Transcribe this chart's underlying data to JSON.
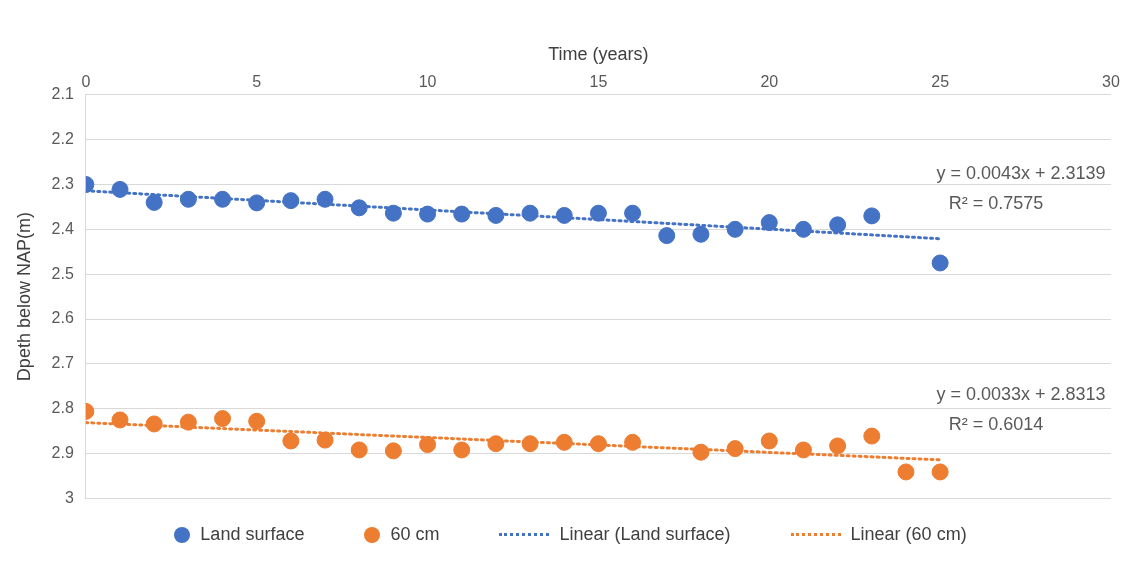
{
  "chart_data": {
    "type": "scatter",
    "xlabel": "Time (years)",
    "ylabel": "Dpeth below NAP(m)",
    "xlim": [
      0,
      30
    ],
    "xticks": [
      0,
      5,
      10,
      15,
      20,
      25,
      30
    ],
    "ylim": [
      3,
      2.1
    ],
    "yticks": [
      2.1,
      2.2,
      2.3,
      2.4,
      2.5,
      2.6,
      2.7,
      2.8,
      2.9,
      3
    ],
    "grid": "y",
    "legend": "bottom",
    "series": [
      {
        "name": "Land surface",
        "type": "scatter",
        "marker": "circle",
        "color": "#4472c4",
        "x": [
          0,
          1,
          2,
          3,
          4,
          5,
          6,
          7,
          8,
          9,
          10,
          11,
          12,
          13,
          14,
          15,
          16,
          17,
          18,
          19,
          20,
          21,
          22,
          23,
          25
        ],
        "values": [
          2.3,
          2.311,
          2.34,
          2.333,
          2.333,
          2.341,
          2.336,
          2.333,
          2.352,
          2.364,
          2.366,
          2.366,
          2.369,
          2.364,
          2.369,
          2.364,
          2.364,
          2.414,
          2.411,
          2.4,
          2.385,
          2.4,
          2.39,
          2.37,
          2.475
        ]
      },
      {
        "name": "60 cm",
        "type": "scatter",
        "marker": "circle",
        "color": "#ed7d31",
        "x": [
          0,
          1,
          2,
          3,
          4,
          5,
          6,
          7,
          8,
          9,
          10,
          11,
          12,
          13,
          14,
          15,
          16,
          18,
          19,
          20,
          21,
          22,
          23,
          24,
          25
        ],
        "values": [
          2.806,
          2.825,
          2.834,
          2.83,
          2.822,
          2.828,
          2.872,
          2.87,
          2.892,
          2.894,
          2.88,
          2.892,
          2.878,
          2.878,
          2.875,
          2.878,
          2.875,
          2.897,
          2.889,
          2.872,
          2.892,
          2.883,
          2.861,
          2.941,
          2.941
        ]
      },
      {
        "name": "Linear (Land surface)",
        "type": "line",
        "marker": "none",
        "line_style": "dotted",
        "color": "#4472c4",
        "x": [
          0,
          25
        ],
        "values": [
          2.314,
          2.421
        ]
      },
      {
        "name": "Linear (60 cm)",
        "type": "line",
        "marker": "none",
        "line_style": "dotted",
        "color": "#ed7d31",
        "x": [
          0,
          25
        ],
        "values": [
          2.831,
          2.914
        ]
      }
    ],
    "annotations": [
      "y = 0.0043x + 2.3139",
      "R² = 0.7575",
      "y = 0.0033x + 2.8313",
      "R² = 0.6014"
    ]
  }
}
